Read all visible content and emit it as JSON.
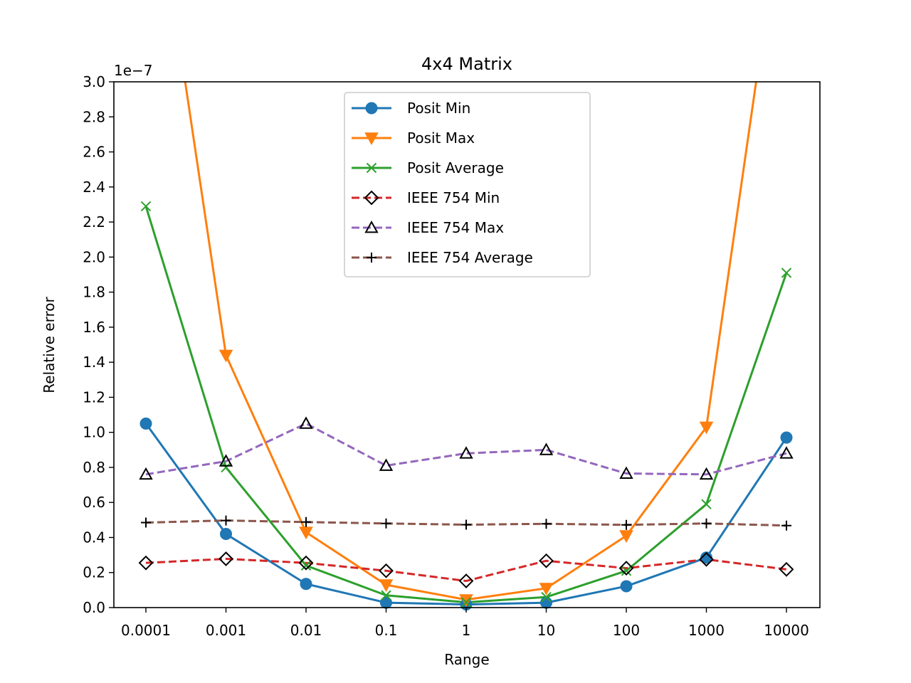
{
  "chart_data": {
    "type": "line",
    "title": "4x4 Matrix",
    "xlabel": "Range",
    "ylabel": "Relative error",
    "y_offset_label": "1e−7",
    "categories": [
      "0.0001",
      "0.001",
      "0.01",
      "0.1",
      "1",
      "10",
      "100",
      "1000",
      "10000"
    ],
    "ylim": [
      0,
      3.0
    ],
    "y_ticks": [
      "0.0",
      "0.2",
      "0.4",
      "0.6",
      "0.8",
      "1.0",
      "1.2",
      "1.4",
      "1.6",
      "1.8",
      "2.0",
      "2.2",
      "2.4",
      "2.6",
      "2.8",
      "3.0"
    ],
    "grid": false,
    "legend_position": "upper-center",
    "series": [
      {
        "name": "Posit Min",
        "color": "#1f77b4",
        "dash": "solid",
        "marker": "circle",
        "values": [
          1.05,
          0.42,
          0.135,
          0.028,
          0.018,
          0.028,
          0.122,
          0.285,
          0.97
        ]
      },
      {
        "name": "Posit Max",
        "color": "#ff7f0e",
        "dash": "solid",
        "marker": "triangle-down",
        "values": [
          4.5,
          1.44,
          0.43,
          0.13,
          0.045,
          0.11,
          0.41,
          1.03,
          4.2
        ]
      },
      {
        "name": "Posit Average",
        "color": "#2ca02c",
        "dash": "solid",
        "marker": "x",
        "values": [
          2.29,
          0.8,
          0.24,
          0.07,
          0.03,
          0.06,
          0.21,
          0.59,
          1.91
        ]
      },
      {
        "name": "IEEE 754 Min",
        "color": "#d62728",
        "dash": "dashed",
        "marker": "diamond",
        "values": [
          0.255,
          0.278,
          0.255,
          0.21,
          0.152,
          0.267,
          0.225,
          0.275,
          0.218
        ]
      },
      {
        "name": "IEEE 754 Max",
        "color": "#9467bd",
        "dash": "dashed",
        "marker": "triangle-up",
        "values": [
          0.76,
          0.835,
          1.05,
          0.81,
          0.88,
          0.9,
          0.765,
          0.76,
          0.88
        ]
      },
      {
        "name": "IEEE 754 Average",
        "color": "#8c564b",
        "dash": "dashed",
        "marker": "plus",
        "values": [
          0.485,
          0.497,
          0.488,
          0.48,
          0.473,
          0.478,
          0.472,
          0.48,
          0.468
        ]
      }
    ]
  }
}
